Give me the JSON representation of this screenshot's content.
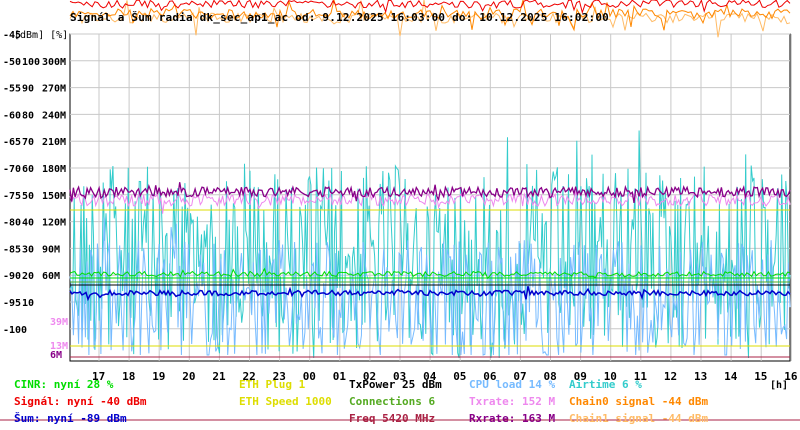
{
  "title": "Signál a Šum radia dk_sec_ap1_ac od: 9.12.2025 16:03:00 do: 10.12.2025 16:02:00",
  "units_label": "[dBm] [%]",
  "x_unit_label": "[h]",
  "legend": [
    {
      "text": "CINR: nyní 28 %",
      "color": "#00dd00"
    },
    {
      "text": "Signál: nyní -40 dBm",
      "color": "#ee0000"
    },
    {
      "text": "Šum: nyní -89 dBm",
      "color": "#0000cc"
    },
    {
      "text": "ETH Plug 1",
      "color": "#dddd00"
    },
    {
      "text": "ETH Speed 1000",
      "color": "#dddd00"
    },
    {
      "text": "TxPower 25 dBm",
      "color": "#000000"
    },
    {
      "text": "Connections 6",
      "color": "#55aa22"
    },
    {
      "text": "Freq 5420 MHz",
      "color": "#aa2244"
    },
    {
      "text": "CPU load 14 %",
      "color": "#77bbff"
    },
    {
      "text": "Txrate: 152 M",
      "color": "#ee88ee"
    },
    {
      "text": "Rxrate: 163 M",
      "color": "#880088"
    },
    {
      "text": "Airtime 6 %",
      "color": "#33cccc"
    },
    {
      "text": "Chain0 signal -44 dBm",
      "color": "#ff8800"
    },
    {
      "text": "Chain1 signal -44 dBm",
      "color": "#ffbb66"
    }
  ],
  "chart_data": {
    "type": "line",
    "x_ticks": [
      "17",
      "18",
      "19",
      "20",
      "21",
      "22",
      "23",
      "00",
      "01",
      "02",
      "03",
      "04",
      "05",
      "06",
      "07",
      "08",
      "09",
      "10",
      "11",
      "12",
      "13",
      "14",
      "15",
      "16"
    ],
    "y_ticks_dbm": [
      "-45",
      "-50",
      "-55",
      "-60",
      "-65",
      "-70",
      "-75",
      "-80",
      "-85",
      "-90",
      "-95",
      "-100"
    ],
    "y_ticks_percent": [
      "",
      "100",
      "90",
      "80",
      "70",
      "60",
      "50",
      "40",
      "30",
      "20",
      "10",
      ""
    ],
    "y_ticks_rate": [
      "",
      "300M",
      "270M",
      "240M",
      "210M",
      "180M",
      "150M",
      "120M",
      "90M",
      "60M",
      "",
      ""
    ],
    "extra_rate_ticks": [
      "39M",
      "13M",
      "6M"
    ],
    "ylim_dbm": [
      -100,
      -45
    ],
    "grid": true,
    "series": [
      {
        "name": "Signál",
        "color": "#ee0000",
        "level": -40
      },
      {
        "name": "Chain0 signal",
        "color": "#ff8800",
        "level": -44
      },
      {
        "name": "Chain1 signal",
        "color": "#ffbb66",
        "level": -44
      },
      {
        "name": "Rxrate",
        "color": "#880088",
        "level": -71.5
      },
      {
        "name": "Txrate",
        "color": "#ee88ee",
        "level": -73
      },
      {
        "name": "ETH Speed",
        "color": "#dddd00",
        "level": -75.5
      },
      {
        "name": "CINR",
        "color": "#00dd00",
        "level": -86.5
      },
      {
        "name": "Šum",
        "color": "#0000cc",
        "level": -89
      },
      {
        "name": "TxPower",
        "color": "#000000",
        "level": -88.5
      },
      {
        "name": "Connections",
        "color": "#55aa22",
        "level": -85
      },
      {
        "name": "CPU load",
        "color": "#77bbff",
        "level": -92
      },
      {
        "name": "Airtime",
        "color": "#33cccc",
        "level": -90
      },
      {
        "name": "Freq",
        "color": "#aa2244",
        "level": -99
      }
    ]
  }
}
